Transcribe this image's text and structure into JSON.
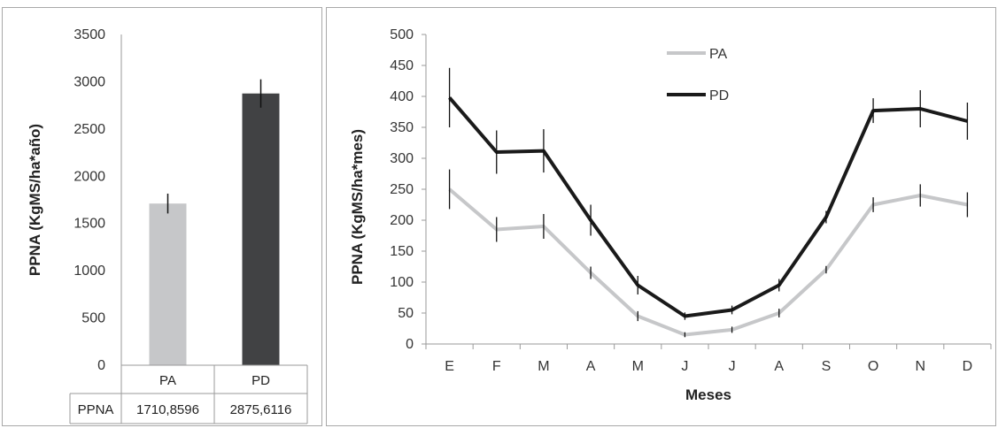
{
  "chart_data": [
    {
      "type": "bar",
      "ylabel": "PPNA (KgMS/ha*año)",
      "ylim": [
        0,
        3500
      ],
      "yticks": [
        0,
        500,
        1000,
        1500,
        2000,
        2500,
        3000,
        3500
      ],
      "categories": [
        "PA",
        "PD"
      ],
      "values": [
        1710.8596,
        2875.6116
      ],
      "error": [
        105,
        150
      ],
      "colors": [
        "#c6c7c9",
        "#414244"
      ],
      "table": {
        "row_label": "PPNA",
        "cells": [
          "1710,8596",
          "2875,6116"
        ]
      }
    },
    {
      "type": "line",
      "xlabel": "Meses",
      "ylabel": "PPNA (KgMS/ha*mes)",
      "ylim": [
        0,
        500
      ],
      "yticks": [
        0,
        50,
        100,
        150,
        200,
        250,
        300,
        350,
        400,
        450,
        500
      ],
      "categories": [
        "E",
        "F",
        "M",
        "A",
        "M",
        "J",
        "J",
        "A",
        "S",
        "O",
        "N",
        "D"
      ],
      "legend_position": "top-center",
      "series": [
        {
          "name": "PA",
          "color": "#c6c7c9",
          "values": [
            250,
            185,
            190,
            115,
            45,
            15,
            23,
            50,
            120,
            225,
            240,
            225
          ],
          "error": [
            32,
            20,
            20,
            10,
            8,
            4,
            5,
            7,
            6,
            12,
            18,
            20
          ]
        },
        {
          "name": "PD",
          "color": "#1a1a1a",
          "values": [
            398,
            310,
            312,
            200,
            95,
            45,
            55,
            95,
            205,
            377,
            380,
            360
          ],
          "error": [
            48,
            35,
            35,
            25,
            15,
            6,
            7,
            10,
            10,
            20,
            30,
            30
          ]
        }
      ]
    }
  ]
}
